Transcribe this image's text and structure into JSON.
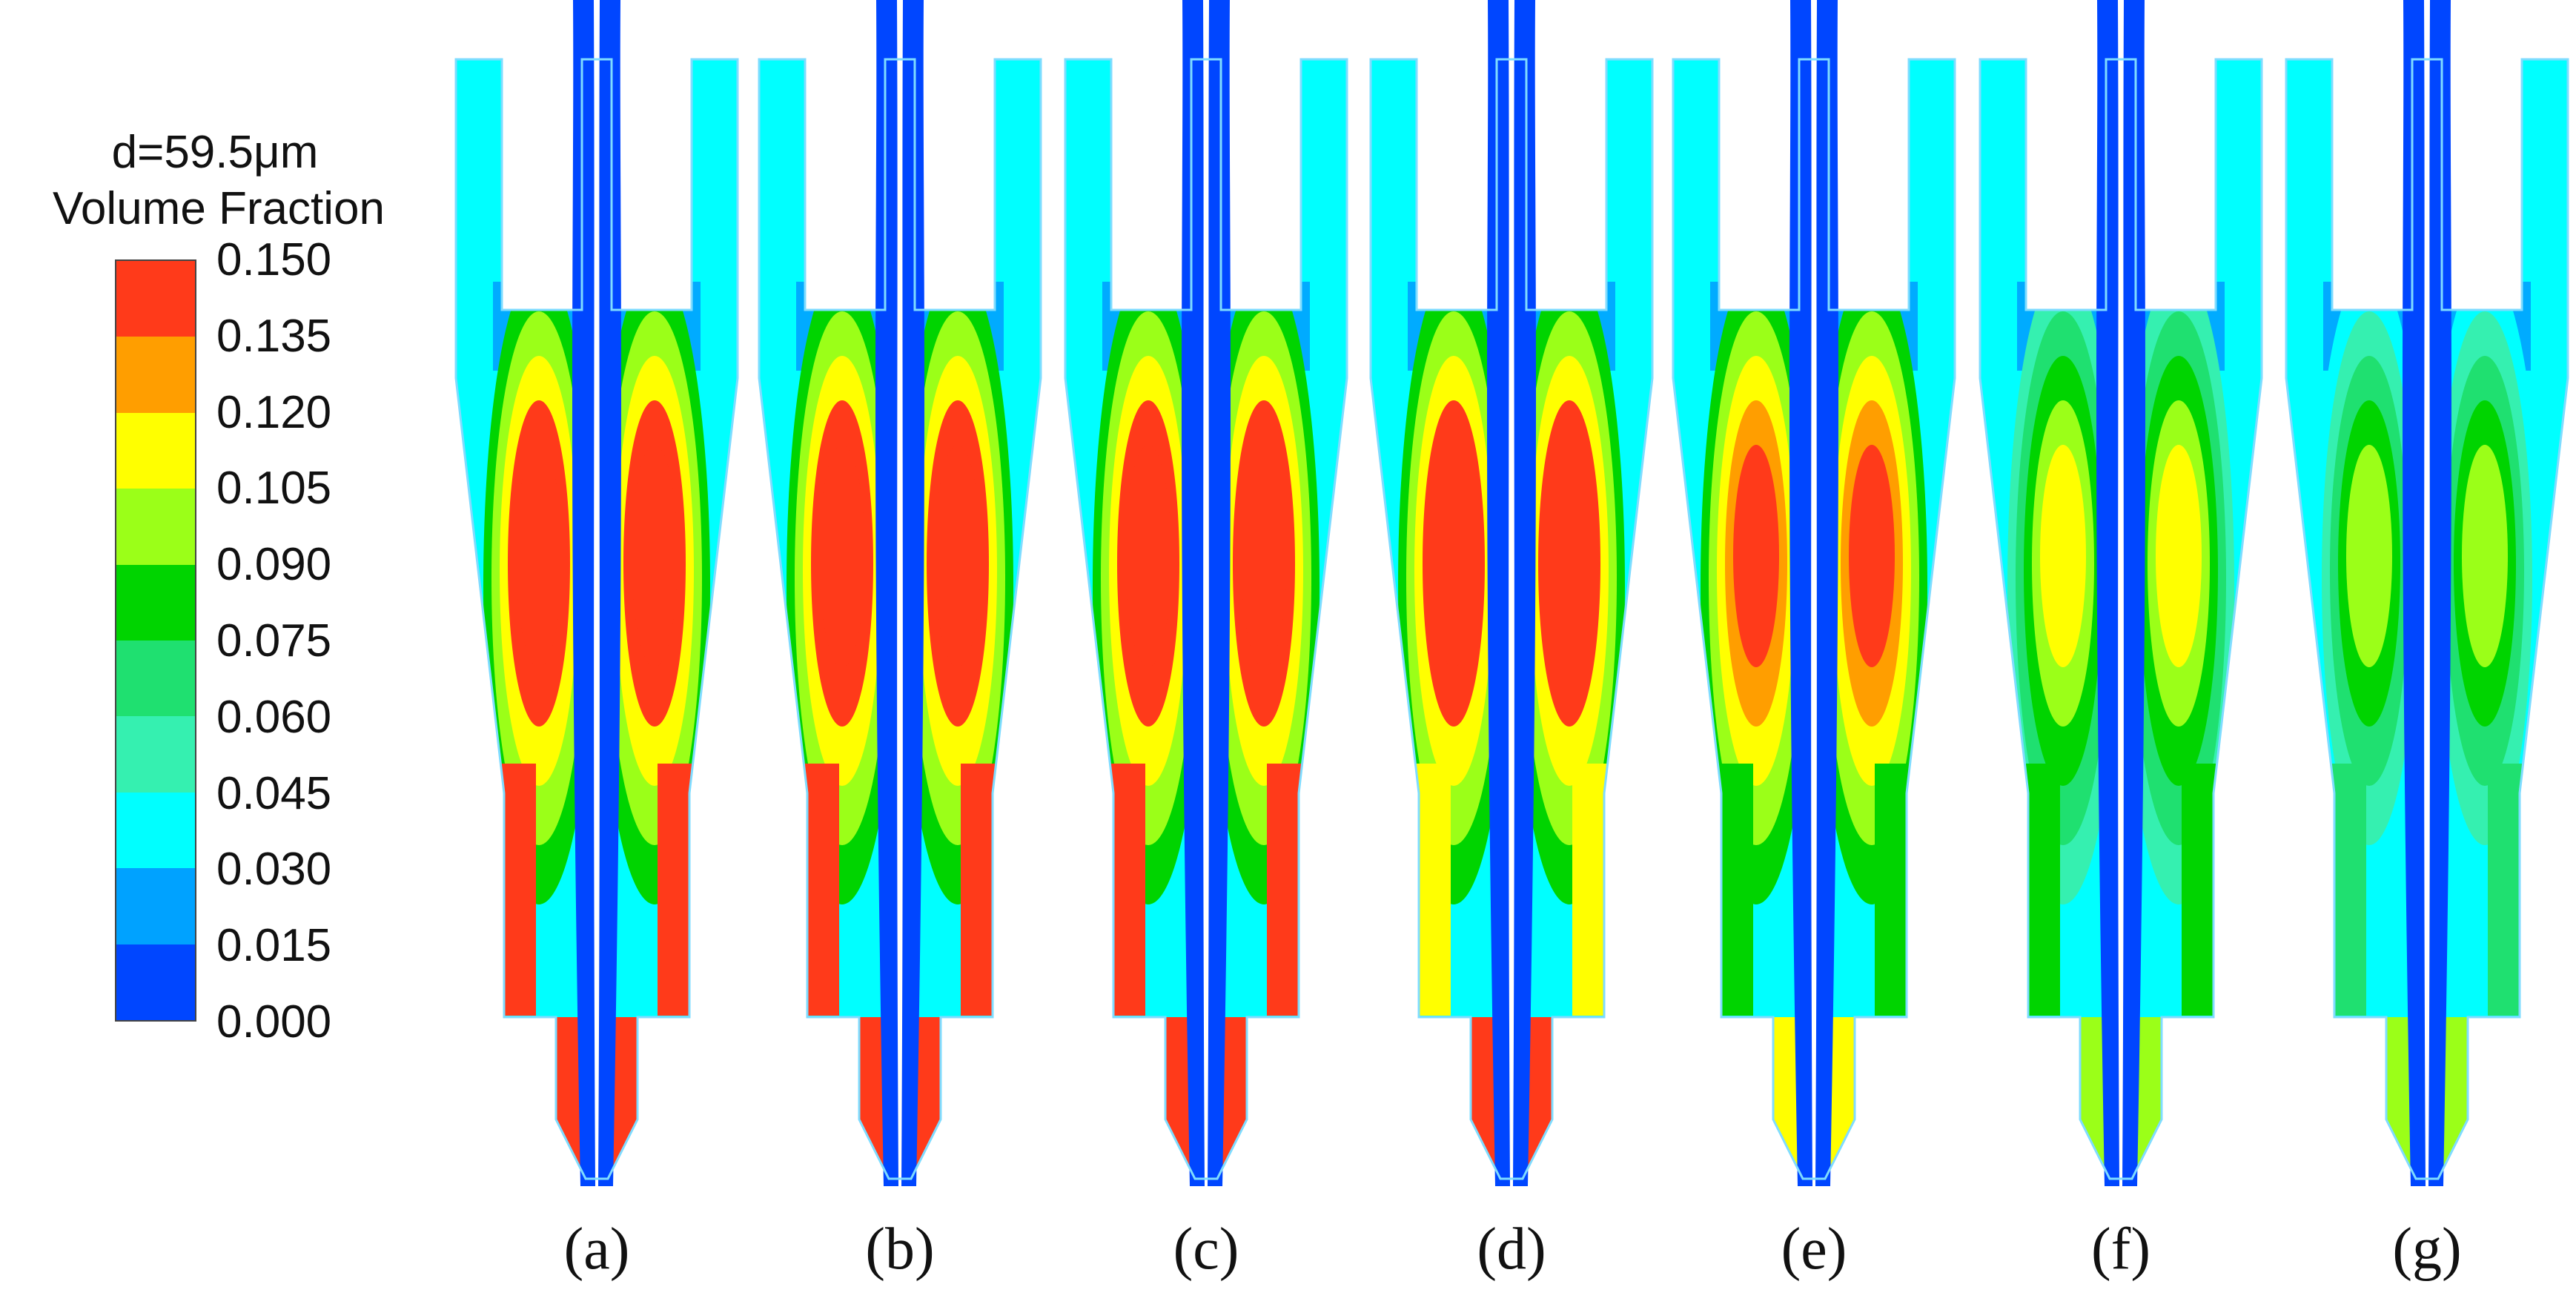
{
  "legend": {
    "title_line1": "d=59.5μm",
    "title_line2": "Volume Fraction",
    "ticks": [
      "0.150",
      "0.135",
      "0.120",
      "0.105",
      "0.090",
      "0.075",
      "0.060",
      "0.045",
      "0.030",
      "0.015",
      "0.000"
    ],
    "band_colors": [
      "#ff3a1a",
      "#ff9e00",
      "#ffff00",
      "#9bff18",
      "#00d400",
      "#1fe070",
      "#35f0b0",
      "#00ffff",
      "#00a2ff",
      "#0046ff"
    ]
  },
  "chart_data": {
    "type": "heatmap",
    "variable": "Volume Fraction",
    "particle_diameter": "d=59.5μm",
    "colorbar_range": [
      0.0,
      0.15
    ],
    "colorbar_step": 0.015,
    "panels": [
      {
        "label": "(a)",
        "peak_concentration": 0.15,
        "outlet_value": 0.15
      },
      {
        "label": "(b)",
        "peak_concentration": 0.15,
        "outlet_value": 0.15
      },
      {
        "label": "(c)",
        "peak_concentration": 0.15,
        "outlet_value": 0.15
      },
      {
        "label": "(d)",
        "peak_concentration": 0.15,
        "outlet_value": 0.12
      },
      {
        "label": "(e)",
        "peak_concentration": 0.14,
        "outlet_value": 0.09
      },
      {
        "label": "(f)",
        "peak_concentration": 0.11,
        "outlet_value": 0.08
      },
      {
        "label": "(g)",
        "peak_concentration": 0.095,
        "outlet_value": 0.07
      }
    ]
  }
}
